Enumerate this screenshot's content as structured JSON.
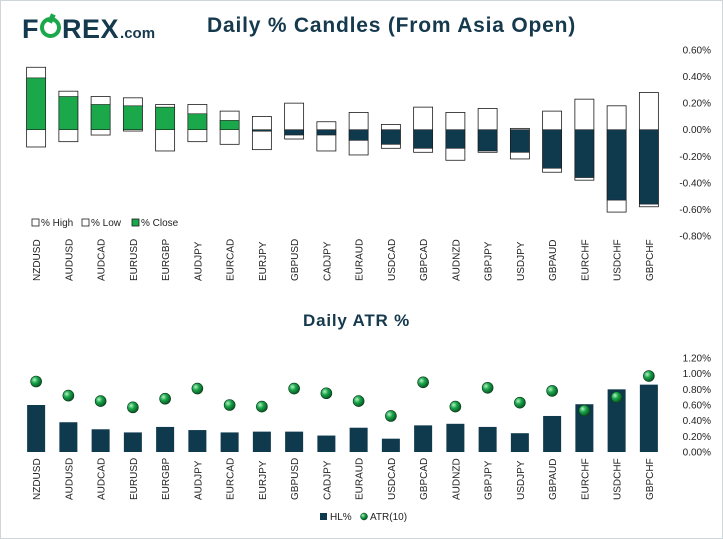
{
  "brand": {
    "logo_text": "FOREX",
    "logo_tld": ".com",
    "green": "#1aa84b",
    "navy": "#15394d"
  },
  "chart_data": [
    {
      "type": "bar",
      "title": "Daily % Candles (From Asia Open)",
      "categories": [
        "NZDUSD",
        "AUDUSD",
        "AUDCAD",
        "EURUSD",
        "EURGBP",
        "AUDJPY",
        "EURCAD",
        "EURJPY",
        "GBPUSD",
        "CADJPY",
        "EURAUD",
        "USDCAD",
        "GBPCAD",
        "AUDNZD",
        "GBPJPY",
        "USDJPY",
        "GBPAUD",
        "EURCHF",
        "USDCHF",
        "GBPCHF"
      ],
      "series": [
        {
          "name": "% High",
          "values": [
            0.47,
            0.29,
            0.25,
            0.24,
            0.19,
            0.19,
            0.14,
            0.1,
            0.2,
            0.06,
            0.13,
            0.04,
            0.17,
            0.13,
            0.16,
            0.01,
            0.14,
            0.23,
            0.18,
            0.28
          ]
        },
        {
          "name": "% Low",
          "values": [
            -0.13,
            -0.09,
            -0.04,
            -0.01,
            -0.16,
            -0.09,
            -0.11,
            -0.15,
            -0.07,
            -0.16,
            -0.19,
            -0.14,
            -0.17,
            -0.23,
            -0.17,
            -0.22,
            -0.32,
            -0.38,
            -0.62,
            -0.58
          ]
        },
        {
          "name": "% Close",
          "values": [
            0.39,
            0.25,
            0.19,
            0.18,
            0.17,
            0.12,
            0.07,
            -0.01,
            -0.04,
            -0.04,
            -0.08,
            -0.11,
            -0.14,
            -0.14,
            -0.16,
            -0.17,
            -0.29,
            -0.36,
            -0.53,
            -0.56
          ]
        }
      ],
      "colors": {
        "up": "#1aa84b",
        "down": "#0f3a4e",
        "range": "#ffffff"
      },
      "ylim": [
        -0.8,
        0.6
      ],
      "yticks": [
        "0.60%",
        "0.40%",
        "0.20%",
        "0.00%",
        "-0.20%",
        "-0.40%",
        "-0.60%",
        "-0.80%"
      ],
      "legend_position": "bottom-left",
      "grid": false
    },
    {
      "type": "bar",
      "title": "Daily ATR %",
      "categories": [
        "NZDUSD",
        "AUDUSD",
        "AUDCAD",
        "EURUSD",
        "EURGBP",
        "AUDJPY",
        "EURCAD",
        "EURJPY",
        "GBPUSD",
        "CADJPY",
        "EURAUD",
        "USDCAD",
        "GBPCAD",
        "AUDNZD",
        "GBPJPY",
        "USDJPY",
        "GBPAUD",
        "EURCHF",
        "USDCHF",
        "GBPCHF"
      ],
      "series": [
        {
          "name": "HL%",
          "type": "bar",
          "values": [
            0.6,
            0.38,
            0.29,
            0.25,
            0.32,
            0.28,
            0.25,
            0.26,
            0.26,
            0.21,
            0.31,
            0.17,
            0.34,
            0.36,
            0.32,
            0.24,
            0.46,
            0.61,
            0.8,
            0.86
          ]
        },
        {
          "name": "ATR(10)",
          "type": "scatter",
          "values": [
            0.9,
            0.72,
            0.65,
            0.57,
            0.68,
            0.81,
            0.6,
            0.58,
            0.81,
            0.75,
            0.65,
            0.46,
            0.89,
            0.58,
            0.82,
            0.63,
            0.78,
            0.53,
            0.7,
            0.97
          ]
        }
      ],
      "colors": {
        "bar": "#0f3a4e",
        "marker": "#1aa84b"
      },
      "ylim": [
        0,
        1.2
      ],
      "yticks": [
        "1.20%",
        "1.00%",
        "0.80%",
        "0.60%",
        "0.40%",
        "0.20%",
        "0.00%"
      ],
      "legend_position": "bottom-center",
      "grid": false
    }
  ]
}
